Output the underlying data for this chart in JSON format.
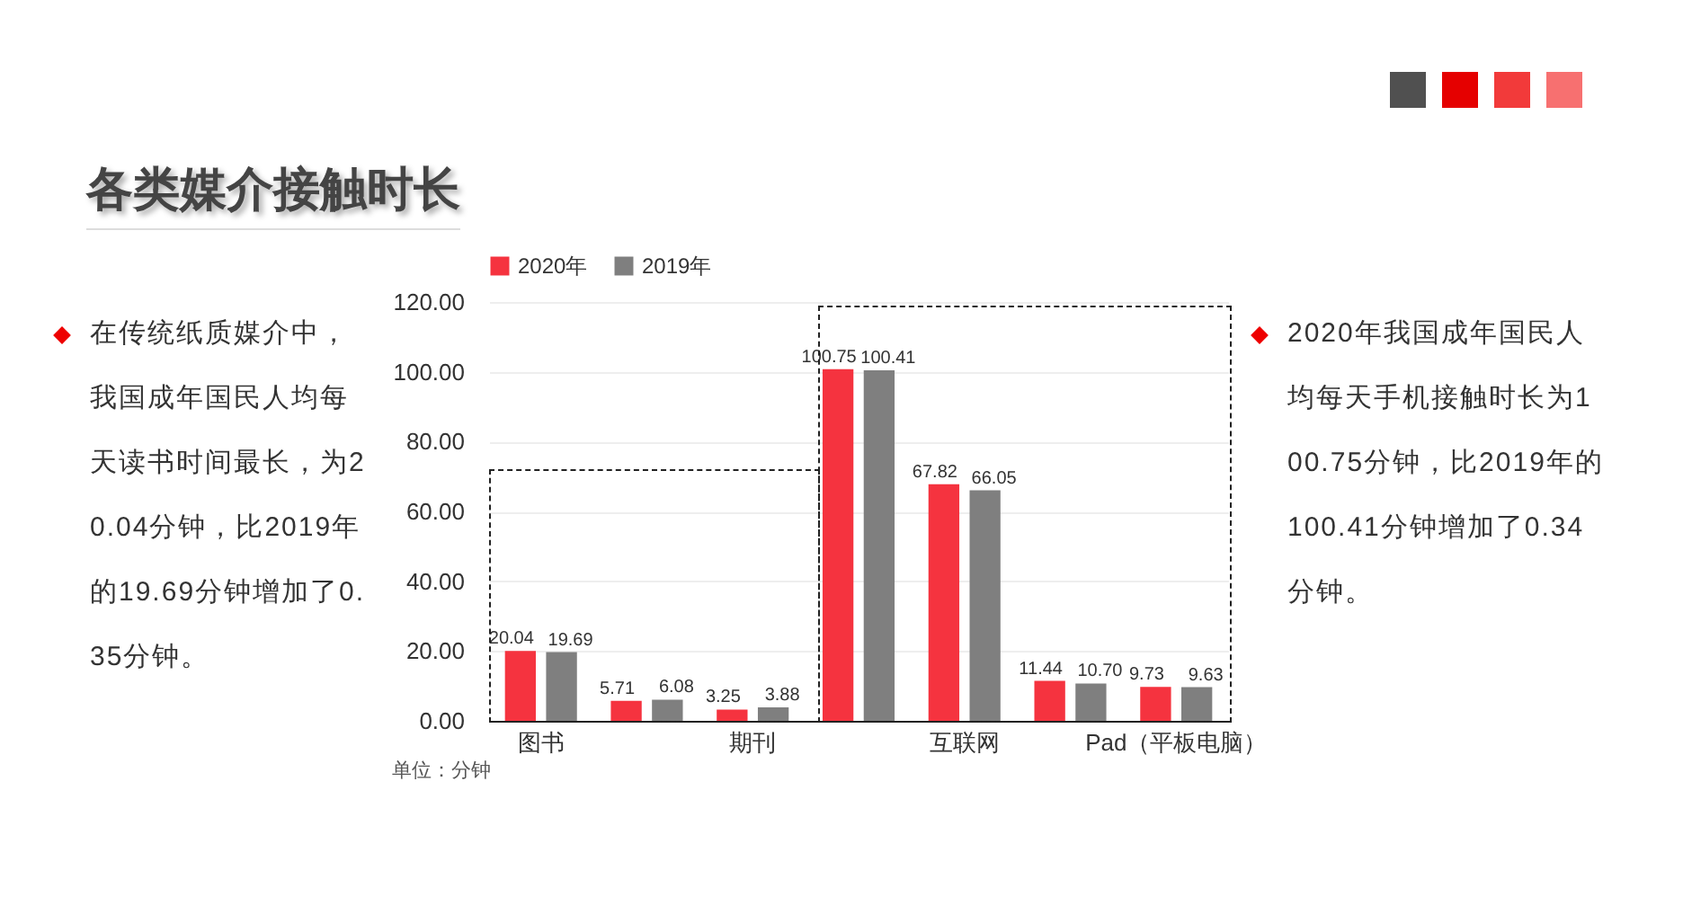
{
  "chart_data": {
    "type": "bar",
    "title": "各类媒介接触时长",
    "categories": [
      "图书",
      null,
      "期刊",
      null,
      "互联网",
      null,
      "Pad（平板电脑）"
    ],
    "series": [
      {
        "name": "2020年",
        "color": "#f5333f",
        "values": [
          20.04,
          5.71,
          3.25,
          100.75,
          67.82,
          11.44,
          9.73
        ],
        "value_labels": [
          "20.04",
          "5.71",
          "3.25",
          "100.75",
          "67.82",
          "11.44",
          "9.73"
        ]
      },
      {
        "name": "2019年",
        "color": "#7f7f7f",
        "values": [
          19.69,
          6.08,
          3.88,
          100.41,
          66.05,
          10.7,
          9.63
        ],
        "value_labels": [
          "19.69",
          "6.08",
          "3.88",
          "100.41",
          "66.05",
          "10.70",
          "9.63"
        ]
      }
    ],
    "ylim": [
      0,
      120
    ],
    "yticks": [
      {
        "value": 0,
        "label": "0.00"
      },
      {
        "value": 20,
        "label": "20.00"
      },
      {
        "value": 40,
        "label": "40.00"
      },
      {
        "value": 60,
        "label": "60.00"
      },
      {
        "value": 80,
        "label": "80.00"
      },
      {
        "value": 100,
        "label": "100.00"
      },
      {
        "value": 120,
        "label": "120.00"
      }
    ],
    "grid": "y",
    "legend": "top",
    "annotations": [
      "在传统纸质媒介中，我国成年国民人均每天读书时间最长，为20.04分钟，比2019年的19.69分钟增加了0.35分钟。",
      "2020年我国成年国民人均每天手机接触时长为100.75分钟，比2019年的100.41分钟增加了0.34分钟。",
      "单位：分钟"
    ]
  }
}
